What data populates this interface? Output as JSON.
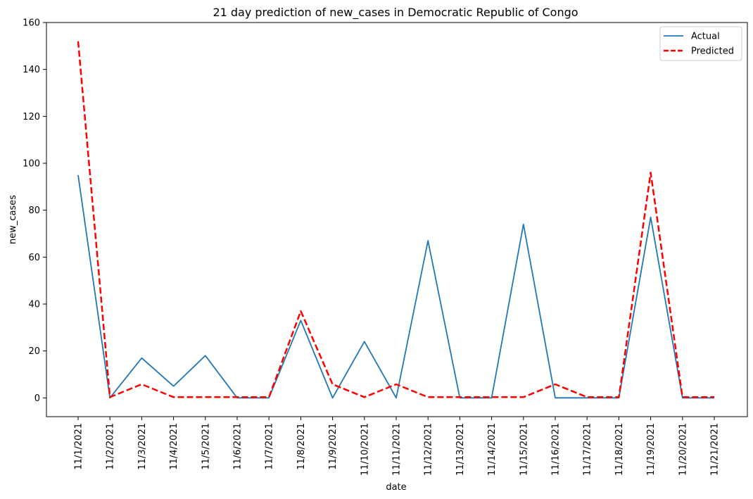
{
  "chart_data": {
    "type": "line",
    "title": "21 day prediction of new_cases in Democratic Republic of Congo",
    "xlabel": "date",
    "ylabel": "new_cases",
    "ylim": [
      -8,
      160
    ],
    "yticks": [
      0,
      20,
      40,
      60,
      80,
      100,
      120,
      140,
      160
    ],
    "grid": false,
    "legend_position": "top-right",
    "categories": [
      "11/1/2021",
      "11/2/2021",
      "11/3/2021",
      "11/4/2021",
      "11/5/2021",
      "11/6/2021",
      "11/7/2021",
      "11/8/2021",
      "11/9/2021",
      "11/10/2021",
      "11/11/2021",
      "11/12/2021",
      "11/13/2021",
      "11/14/2021",
      "11/15/2021",
      "11/16/2021",
      "11/17/2021",
      "11/18/2021",
      "11/19/2021",
      "11/20/2021",
      "11/21/2021"
    ],
    "series": [
      {
        "name": "Actual",
        "color": "#1f77b4",
        "style": "solid",
        "values": [
          95,
          0,
          17,
          5,
          18,
          0,
          0,
          33,
          0,
          24,
          0,
          67,
          0,
          0,
          74,
          0,
          0,
          0,
          77,
          0,
          0
        ]
      },
      {
        "name": "Predicted",
        "color": "#ff0000",
        "style": "dashed",
        "values": [
          152,
          0.3,
          5.8,
          0.3,
          0.3,
          0.3,
          0.3,
          37,
          5.8,
          0.3,
          5.8,
          0.3,
          0.3,
          0.3,
          0.3,
          5.8,
          0.3,
          0.3,
          96,
          0.3,
          0.3
        ]
      }
    ]
  }
}
